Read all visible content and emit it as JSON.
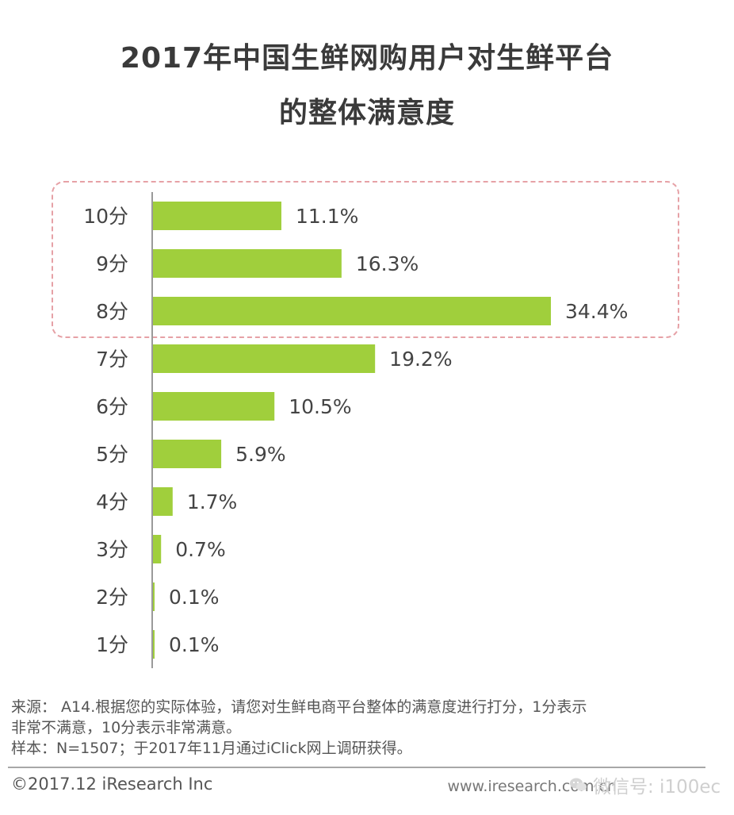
{
  "title_line1": "2017年中国生鲜网购用户对生鲜平台",
  "title_line2": "的整体满意度",
  "chart_data": {
    "type": "bar",
    "orientation": "horizontal",
    "title": "2017年中国生鲜网购用户对生鲜平台的整体满意度",
    "categories": [
      "10分",
      "9分",
      "8分",
      "7分",
      "6分",
      "5分",
      "4分",
      "3分",
      "2分",
      "1分"
    ],
    "values": [
      11.1,
      16.3,
      34.4,
      19.2,
      10.5,
      5.9,
      1.7,
      0.7,
      0.1,
      0.1
    ],
    "value_labels": [
      "11.1%",
      "16.3%",
      "34.4%",
      "19.2%",
      "10.5%",
      "5.9%",
      "1.7%",
      "0.7%",
      "0.1%",
      "0.1%"
    ],
    "unit": "%",
    "highlighted_categories": [
      "10分",
      "9分",
      "8分"
    ],
    "bar_color": "#a0cf3c",
    "highlight_border_color": "#e6a1a6",
    "grid": false,
    "legend": "none"
  },
  "footer": {
    "source_line1": "来源： A14.根据您的实际体验，请您对生鲜电商平台整体的满意度进行打分，1分表示",
    "source_line2": "非常不满意，10分表示非常满意。",
    "sample": "样本：N=1507；于2017年11月通过iClick网上调研获得。",
    "copyright": "©2017.12 iResearch Inc",
    "site": "www.iresearch.com.cn",
    "watermark": "微信号: i100ec"
  },
  "icons": [
    "wechat-icon"
  ]
}
